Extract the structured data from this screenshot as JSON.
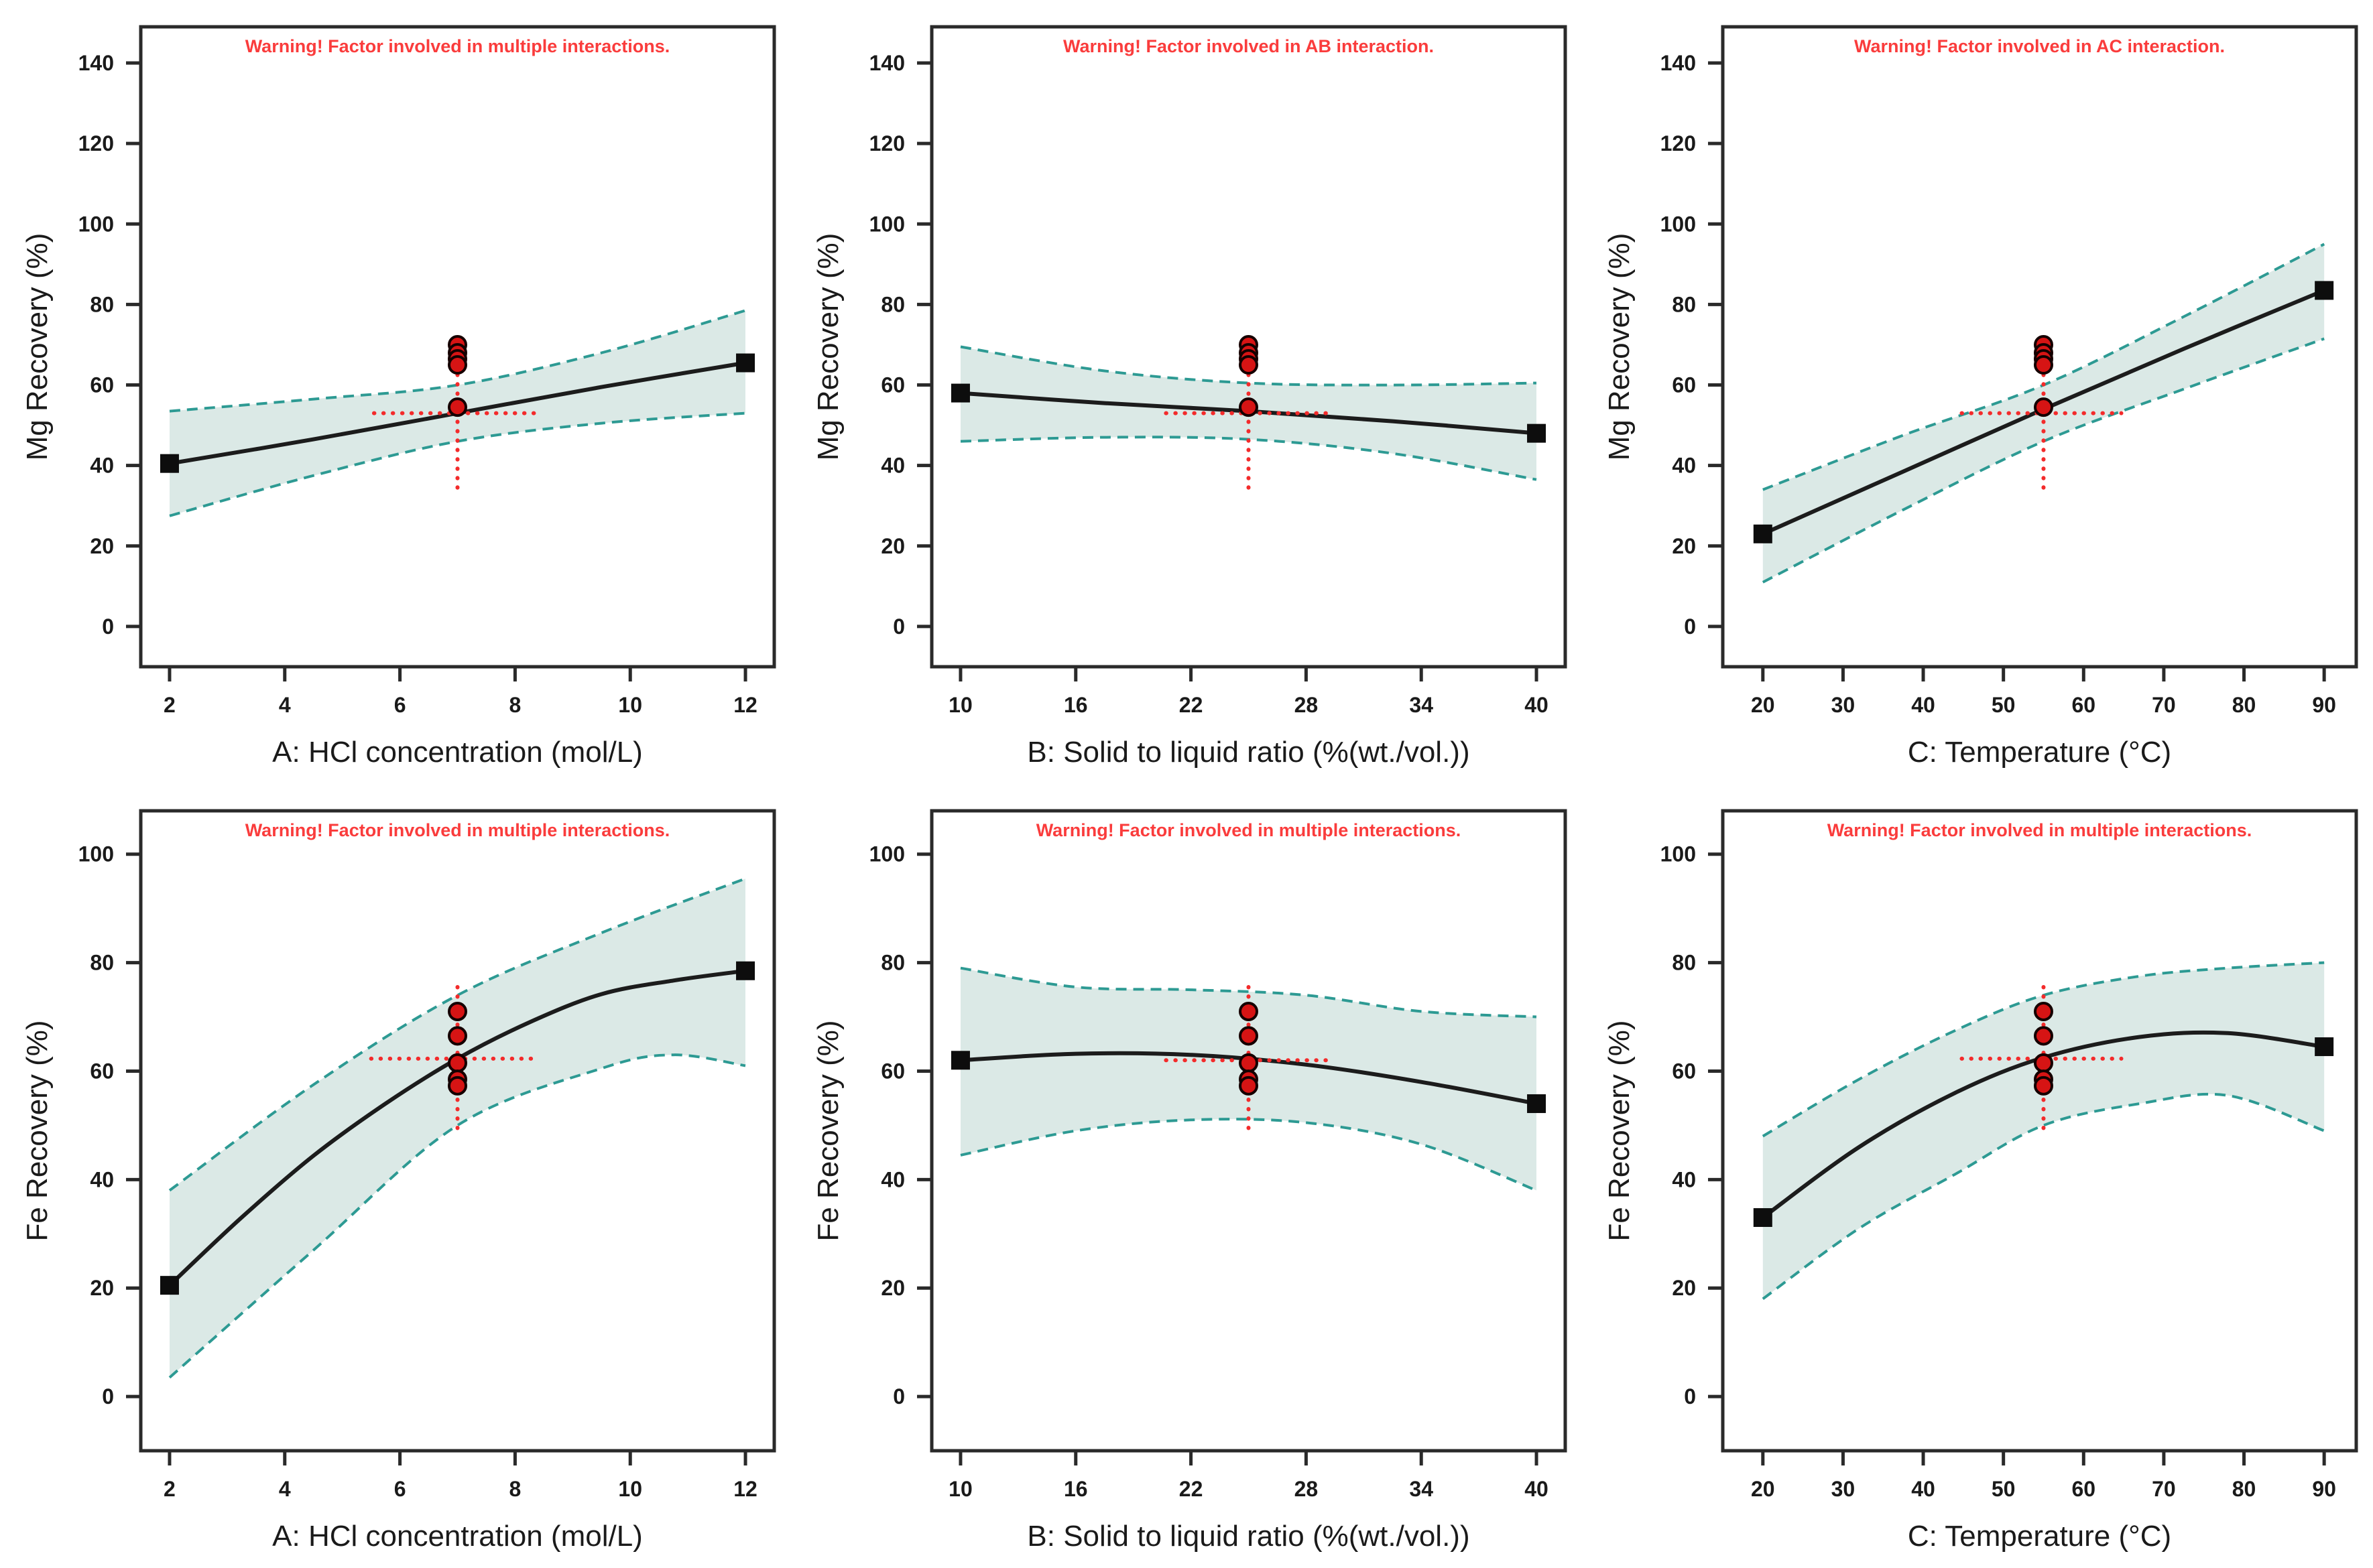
{
  "figure": {
    "description": "One-factor effect plots with 95% confidence bands for Mg and Fe recovery"
  },
  "colors": {
    "background": "#ffffff",
    "band_fill": "#dbe9e6",
    "band_edge": "#2d9a93",
    "mean_line": "#1c1c1c",
    "axis": "#2a2a2a",
    "text": "#1a1a1a",
    "warning_text": "#fa3c3c",
    "crosshair": "#f32b2b",
    "design_point_fill": "#d61414",
    "design_point_stroke": "#150000",
    "endpoint_fill": "#0d0d0d"
  },
  "chart_data": [
    {
      "type": "line",
      "warning": "Warning! Factor involved in multiple interactions.",
      "xlabel": "A: HCl concentration (mol/L)",
      "ylabel": "Mg Recovery (%)",
      "xlim": [
        1.5,
        12.5
      ],
      "ylim": [
        -10,
        149
      ],
      "xticks": [
        2,
        4,
        6,
        8,
        10,
        12
      ],
      "yticks": [
        0,
        20,
        40,
        60,
        80,
        100,
        120,
        140
      ],
      "grid": false,
      "legend": "none",
      "mean_line": {
        "x": [
          2,
          4.5,
          7,
          9.5,
          12
        ],
        "y": [
          40.5,
          46.5,
          53,
          59.5,
          65.5
        ]
      },
      "band_upper": {
        "x": [
          2,
          4.5,
          7,
          9.5,
          12
        ],
        "y": [
          53.5,
          56.5,
          60,
          68,
          78.5
        ]
      },
      "band_lower": {
        "x": [
          2,
          4.5,
          7,
          9.5,
          12
        ],
        "y": [
          27.5,
          37.5,
          46,
          50.5,
          53
        ]
      },
      "endpoints": [
        [
          2,
          40.5
        ],
        [
          12,
          65.5
        ]
      ],
      "design_points": {
        "x": 7,
        "y": [
          70,
          68,
          66.5,
          65,
          54.5
        ]
      },
      "crosshair": {
        "x": 7,
        "y": 53,
        "x_range": [
          5.55,
          8.35
        ],
        "y_range": [
          34.5,
          72.5
        ]
      }
    },
    {
      "type": "line",
      "warning": "Warning! Factor involved in AB interaction.",
      "xlabel": "B: Solid to liquid ratio (%(wt./vol.))",
      "ylabel": "Mg Recovery (%)",
      "xlim": [
        8.5,
        41.5
      ],
      "ylim": [
        -10,
        149
      ],
      "xticks": [
        10,
        16,
        22,
        28,
        34,
        40
      ],
      "yticks": [
        0,
        20,
        40,
        60,
        80,
        100,
        120,
        140
      ],
      "grid": false,
      "legend": "none",
      "mean_line": {
        "x": [
          10,
          17.5,
          25,
          32.5,
          40
        ],
        "y": [
          58,
          55.5,
          53.5,
          51,
          48
        ]
      },
      "band_upper": {
        "x": [
          10,
          17.5,
          25,
          32.5,
          40
        ],
        "y": [
          69.5,
          63.5,
          60.5,
          60,
          60.5
        ]
      },
      "band_lower": {
        "x": [
          10,
          17.5,
          25,
          32.5,
          40
        ],
        "y": [
          46,
          47,
          46.5,
          43,
          36.5
        ]
      },
      "endpoints": [
        [
          10,
          58
        ],
        [
          40,
          48
        ]
      ],
      "design_points": {
        "x": 25,
        "y": [
          70,
          68,
          66.5,
          65,
          54.5
        ]
      },
      "crosshair": {
        "x": 25,
        "y": 53,
        "x_range": [
          20.7,
          29.4
        ],
        "y_range": [
          34.5,
          72.5
        ]
      }
    },
    {
      "type": "line",
      "warning": "Warning! Factor involved in AC interaction.",
      "xlabel": "C: Temperature (°C)",
      "ylabel": "Mg Recovery (%)",
      "xlim": [
        15,
        94
      ],
      "ylim": [
        -10,
        149
      ],
      "xticks": [
        20,
        30,
        40,
        50,
        60,
        70,
        80,
        90
      ],
      "yticks": [
        0,
        20,
        40,
        60,
        80,
        100,
        120,
        140
      ],
      "grid": false,
      "legend": "none",
      "mean_line": {
        "x": [
          20,
          37.5,
          55,
          72.5,
          90
        ],
        "y": [
          23,
          38.5,
          54,
          69,
          83.5
        ]
      },
      "band_upper": {
        "x": [
          20,
          37.5,
          55,
          72.5,
          90
        ],
        "y": [
          34,
          47.5,
          60,
          77,
          95
        ]
      },
      "band_lower": {
        "x": [
          20,
          37.5,
          55,
          72.5,
          90
        ],
        "y": [
          11,
          29,
          46,
          59,
          71.5
        ]
      },
      "endpoints": [
        [
          20,
          23
        ],
        [
          90,
          83.5
        ]
      ],
      "design_points": {
        "x": 55,
        "y": [
          70,
          68,
          66.5,
          65,
          54.5
        ]
      },
      "crosshair": {
        "x": 55,
        "y": 53,
        "x_range": [
          44.8,
          64.7
        ],
        "y_range": [
          34.5,
          72.5
        ]
      }
    },
    {
      "type": "line",
      "warning": "Warning! Factor involved in multiple interactions.",
      "xlabel": "A: HCl concentration (mol/L)",
      "ylabel": "Fe Recovery (%)",
      "xlim": [
        1.5,
        12.5
      ],
      "ylim": [
        -10,
        108
      ],
      "xticks": [
        2,
        4,
        6,
        8,
        10,
        12
      ],
      "yticks": [
        0,
        20,
        40,
        60,
        80,
        100
      ],
      "grid": false,
      "legend": "none",
      "mean_line": {
        "x": [
          2,
          3.25,
          4.5,
          5.75,
          7,
          8.25,
          9.5,
          10.75,
          12
        ],
        "y": [
          20.5,
          33,
          44.4,
          54,
          62.3,
          69,
          74.2,
          76.7,
          78.5
        ]
      },
      "band_upper": {
        "x": [
          2,
          4.5,
          7,
          9.5,
          12
        ],
        "y": [
          38,
          57.5,
          74,
          85.5,
          95.5
        ]
      },
      "band_lower": {
        "x": [
          2,
          4.5,
          7,
          9.5,
          10.75,
          12
        ],
        "y": [
          3.5,
          27,
          50,
          60.5,
          63,
          61
        ]
      },
      "endpoints": [
        [
          2,
          20.5
        ],
        [
          12,
          78.5
        ]
      ],
      "design_points": {
        "x": 7,
        "y": [
          71,
          66.5,
          61.5,
          58.5,
          57.3
        ]
      },
      "crosshair": {
        "x": 7,
        "y": 62.3,
        "x_range": [
          5.5,
          8.35
        ],
        "y_range": [
          49.5,
          76
        ]
      }
    },
    {
      "type": "line",
      "warning": "Warning! Factor involved in multiple interactions.",
      "xlabel": "B: Solid to liquid ratio (%(wt./vol.))",
      "ylabel": "Fe Recovery (%)",
      "xlim": [
        8.5,
        41.5
      ],
      "ylim": [
        -10,
        108
      ],
      "xticks": [
        10,
        16,
        22,
        28,
        34,
        40
      ],
      "yticks": [
        0,
        20,
        40,
        60,
        80,
        100
      ],
      "grid": false,
      "legend": "none",
      "mean_line": {
        "x": [
          10,
          16,
          22,
          28,
          34,
          40
        ],
        "y": [
          62,
          63.2,
          63,
          61.2,
          58,
          54
        ]
      },
      "band_upper": {
        "x": [
          10,
          16,
          22,
          28,
          34,
          40
        ],
        "y": [
          79,
          75.5,
          75,
          74,
          71,
          70
        ]
      },
      "band_lower": {
        "x": [
          10,
          16,
          22,
          28,
          34,
          40
        ],
        "y": [
          44.5,
          49,
          51,
          50.5,
          46.5,
          38
        ]
      },
      "endpoints": [
        [
          10,
          62
        ],
        [
          40,
          54
        ]
      ],
      "design_points": {
        "x": 25,
        "y": [
          71,
          66.5,
          61.5,
          58.5,
          57.3
        ]
      },
      "crosshair": {
        "x": 25,
        "y": 62,
        "x_range": [
          20.7,
          29.4
        ],
        "y_range": [
          49.5,
          75.5
        ]
      }
    },
    {
      "type": "line",
      "warning": "Warning! Factor involved in multiple interactions.",
      "xlabel": "C: Temperature (°C)",
      "ylabel": "Fe Recovery (%)",
      "xlim": [
        15,
        94
      ],
      "ylim": [
        -10,
        108
      ],
      "xticks": [
        20,
        30,
        40,
        50,
        60,
        70,
        80,
        90
      ],
      "yticks": [
        0,
        20,
        40,
        60,
        80,
        100
      ],
      "grid": false,
      "legend": "none",
      "mean_line": {
        "x": [
          20,
          32,
          44,
          55,
          67,
          78,
          90
        ],
        "y": [
          33,
          46,
          56,
          62.5,
          66.3,
          67,
          64.5
        ]
      },
      "band_upper": {
        "x": [
          20,
          32,
          44,
          55,
          67,
          78,
          90
        ],
        "y": [
          48,
          58.5,
          67.5,
          74,
          77.5,
          79,
          80
        ]
      },
      "band_lower": {
        "x": [
          20,
          32,
          44,
          55,
          67,
          78,
          90
        ],
        "y": [
          18,
          31,
          41,
          50,
          54,
          55.5,
          49
        ]
      },
      "endpoints": [
        [
          20,
          33
        ],
        [
          90,
          64.5
        ]
      ],
      "design_points": {
        "x": 55,
        "y": [
          71,
          66.5,
          61.5,
          58.5,
          57.3
        ]
      },
      "crosshair": {
        "x": 55,
        "y": 62.3,
        "x_range": [
          44.8,
          64.7
        ],
        "y_range": [
          49.5,
          75.5
        ]
      }
    }
  ]
}
